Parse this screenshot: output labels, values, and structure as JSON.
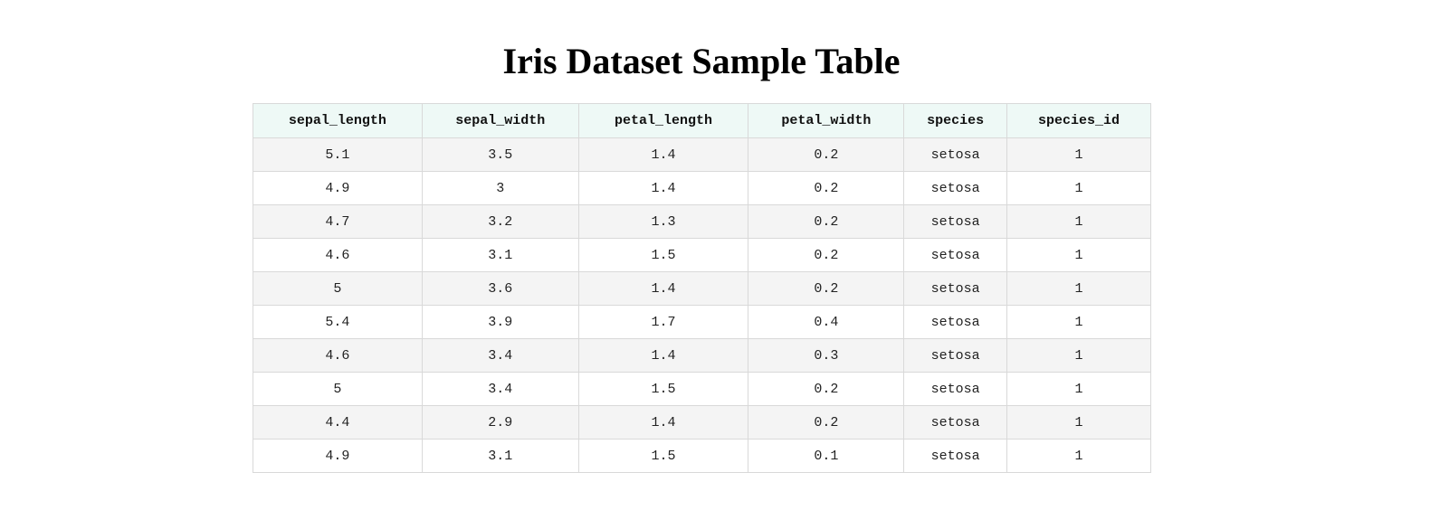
{
  "title": "Iris Dataset Sample Table",
  "table": {
    "headers": [
      "sepal_length",
      "sepal_width",
      "petal_length",
      "petal_width",
      "species",
      "species_id"
    ],
    "rows": [
      [
        "5.1",
        "3.5",
        "1.4",
        "0.2",
        "setosa",
        "1"
      ],
      [
        "4.9",
        "3",
        "1.4",
        "0.2",
        "setosa",
        "1"
      ],
      [
        "4.7",
        "3.2",
        "1.3",
        "0.2",
        "setosa",
        "1"
      ],
      [
        "4.6",
        "3.1",
        "1.5",
        "0.2",
        "setosa",
        "1"
      ],
      [
        "5",
        "3.6",
        "1.4",
        "0.2",
        "setosa",
        "1"
      ],
      [
        "5.4",
        "3.9",
        "1.7",
        "0.4",
        "setosa",
        "1"
      ],
      [
        "4.6",
        "3.4",
        "1.4",
        "0.3",
        "setosa",
        "1"
      ],
      [
        "5",
        "3.4",
        "1.5",
        "0.2",
        "setosa",
        "1"
      ],
      [
        "4.4",
        "2.9",
        "1.4",
        "0.2",
        "setosa",
        "1"
      ],
      [
        "4.9",
        "3.1",
        "1.5",
        "0.1",
        "setosa",
        "1"
      ]
    ]
  },
  "colors": {
    "header_background": "#eef9f6",
    "stripe_background": "#f4f4f4",
    "border": "#d9d9d9"
  }
}
